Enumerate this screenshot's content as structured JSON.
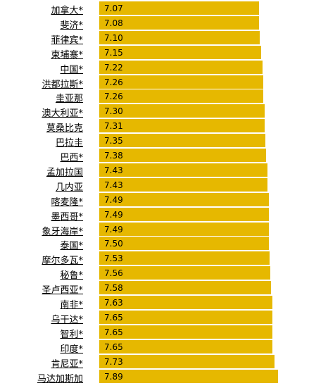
{
  "chart_data": {
    "type": "bar",
    "orientation": "horizontal",
    "categories": [
      "加拿大*",
      "斐济*",
      "菲律宾*",
      "柬埔寨*",
      "中国*",
      "洪都拉斯*",
      "圭亚那",
      "澳大利亚*",
      "莫桑比克",
      "巴拉圭",
      "巴西*",
      "孟加拉国",
      "几内亚",
      "喀麦隆*",
      "墨西哥*",
      "象牙海岸*",
      "泰国*",
      "摩尔多瓦*",
      "秘鲁*",
      "圣卢西亚*",
      "南非*",
      "乌干达*",
      "智利*",
      "印度*",
      "肯尼亚*",
      "马达加斯加"
    ],
    "values": [
      7.07,
      7.08,
      7.1,
      7.15,
      7.22,
      7.26,
      7.26,
      7.3,
      7.31,
      7.35,
      7.38,
      7.43,
      7.43,
      7.49,
      7.49,
      7.49,
      7.5,
      7.53,
      7.56,
      7.58,
      7.63,
      7.65,
      7.65,
      7.65,
      7.73,
      7.89
    ],
    "value_labels": [
      "7.07",
      "7.08",
      "7.10",
      "7.15",
      "7.22",
      "7.26",
      "7.26",
      "7.30",
      "7.31",
      "7.35",
      "7.38",
      "7.43",
      "7.43",
      "7.49",
      "7.49",
      "7.49",
      "7.50",
      "7.53",
      "7.56",
      "7.58",
      "7.63",
      "7.65",
      "7.65",
      "7.65",
      "7.73",
      "7.89"
    ],
    "bar_color": "#e6b800"
  }
}
